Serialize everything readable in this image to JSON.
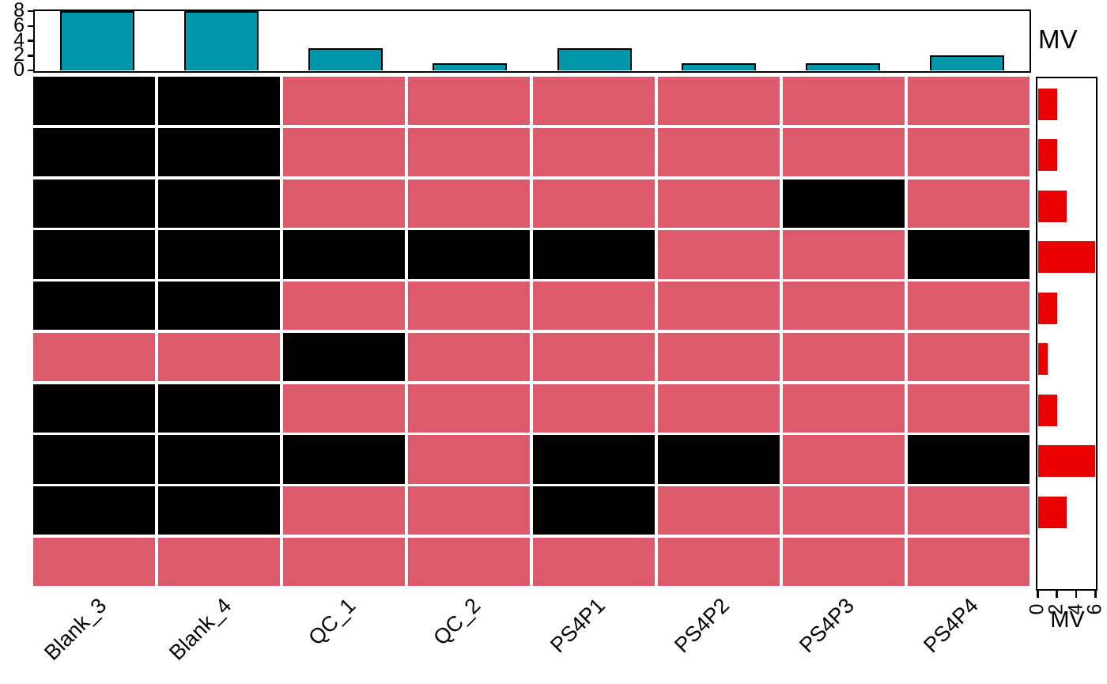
{
  "figure": {
    "description": "Missing value pattern heatmap with per-column and per-row missing-value barplot annotations"
  },
  "chart_data": [
    {
      "type": "bar",
      "name": "top-missing-values-per-sample",
      "orientation": "vertical",
      "title": "MV",
      "categories": [
        "Blank_3",
        "Blank_4",
        "QC_1",
        "QC_2",
        "PS4P1",
        "PS4P2",
        "PS4P3",
        "PS4P4"
      ],
      "values": [
        8,
        8,
        3,
        1,
        3,
        1,
        1,
        2
      ],
      "axis_ticks": [
        0,
        2,
        4,
        6,
        8
      ],
      "ylim": [
        0,
        8
      ],
      "ylabel": "MV",
      "bar_color": "#0097AB",
      "bar_border_color": "#000000",
      "grid": false,
      "legend_position": "none"
    },
    {
      "type": "heatmap",
      "name": "missing-value-matrix",
      "columns": [
        "Blank_3",
        "Blank_4",
        "QC_1",
        "QC_2",
        "PS4P1",
        "PS4P2",
        "PS4P3",
        "PS4P4"
      ],
      "n_rows": 10,
      "matrix": [
        [
          1,
          1,
          0,
          0,
          0,
          0,
          0,
          0
        ],
        [
          1,
          1,
          0,
          0,
          0,
          0,
          0,
          0
        ],
        [
          1,
          1,
          0,
          0,
          0,
          0,
          1,
          0
        ],
        [
          1,
          1,
          1,
          1,
          1,
          0,
          0,
          1
        ],
        [
          1,
          1,
          0,
          0,
          0,
          0,
          0,
          0
        ],
        [
          0,
          0,
          1,
          0,
          0,
          0,
          0,
          0
        ],
        [
          1,
          1,
          0,
          0,
          0,
          0,
          0,
          0
        ],
        [
          1,
          1,
          1,
          0,
          1,
          1,
          0,
          1
        ],
        [
          1,
          1,
          0,
          0,
          1,
          0,
          0,
          0
        ],
        [
          0,
          0,
          0,
          0,
          0,
          0,
          0,
          0
        ]
      ],
      "colors": {
        "missing": "#000000",
        "present": "#DB5A6C",
        "cell_gap": "#ffffff"
      }
    },
    {
      "type": "bar",
      "name": "right-missing-values-per-row",
      "orientation": "horizontal",
      "title": "MV",
      "values": [
        2,
        2,
        3,
        6,
        2,
        1,
        2,
        6,
        3,
        0
      ],
      "axis_ticks": [
        0,
        2,
        4,
        6
      ],
      "xlim": [
        0,
        6
      ],
      "xlabel": "MV",
      "bar_color": "#EB0000",
      "grid": false,
      "legend_position": "none"
    }
  ]
}
